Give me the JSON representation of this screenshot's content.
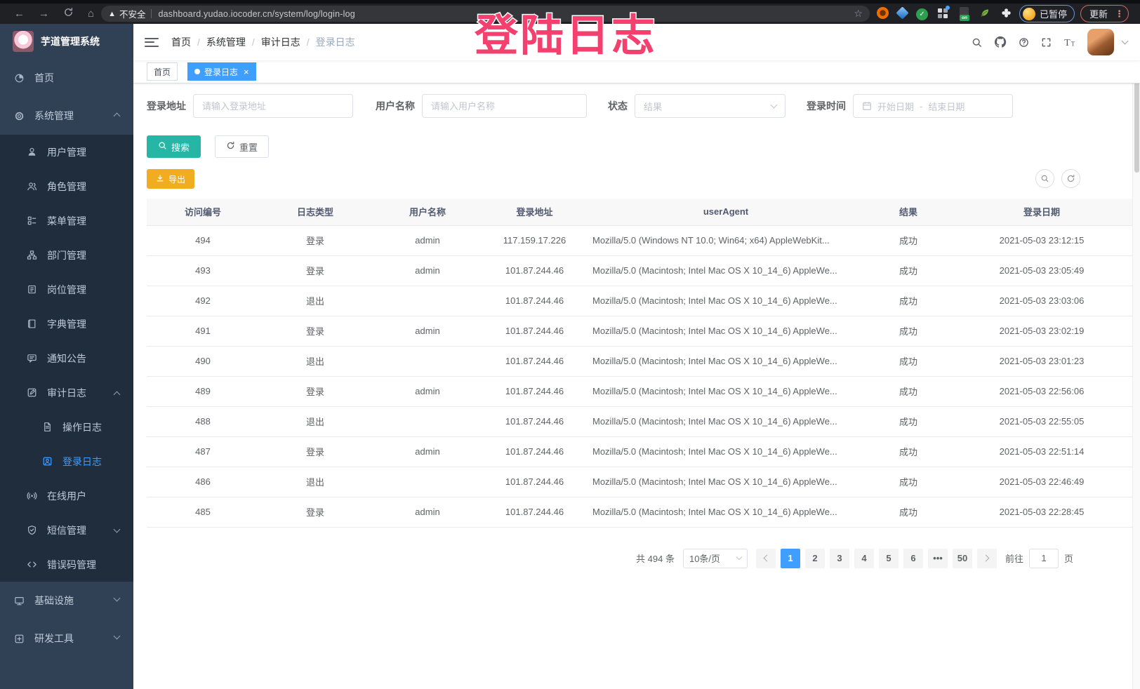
{
  "browser": {
    "nav_icons": [
      "back-icon",
      "forward-icon",
      "reload-icon",
      "home-icon"
    ],
    "security_warning": "不安全",
    "url": "dashboard.yudao.iocoder.cn/system/log/login-log",
    "extension_icons": [
      "adblock-icon",
      "diamond-icon",
      "green-check-icon",
      "tab-grid-icon",
      "switch-on-icon",
      "leaf-icon",
      "puzzle-icon"
    ],
    "profile_paused_label": "已暂停",
    "update_label": "更新"
  },
  "overlay": {
    "text": "登陆日志",
    "color": "#f4406e"
  },
  "sidebar": {
    "logo_title": "芋道管理系统",
    "items": [
      {
        "key": "home",
        "label": "首页",
        "icon": "home-menu-icon",
        "level": 1,
        "chevron": null,
        "active": false
      },
      {
        "key": "system-management",
        "label": "系统管理",
        "icon": "gear-icon",
        "level": 1,
        "chevron": "up",
        "active": false
      },
      {
        "key": "user-management",
        "label": "用户管理",
        "icon": "user-icon",
        "level": 2,
        "chevron": null,
        "active": false
      },
      {
        "key": "role-management",
        "label": "角色管理",
        "icon": "role-icon",
        "level": 2,
        "chevron": null,
        "active": false
      },
      {
        "key": "menu-management",
        "label": "菜单管理",
        "icon": "menu-tree-icon",
        "level": 2,
        "chevron": null,
        "active": false
      },
      {
        "key": "dept-management",
        "label": "部门管理",
        "icon": "dept-icon",
        "level": 2,
        "chevron": null,
        "active": false
      },
      {
        "key": "post-management",
        "label": "岗位管理",
        "icon": "post-icon",
        "level": 2,
        "chevron": null,
        "active": false
      },
      {
        "key": "dict-management",
        "label": "字典管理",
        "icon": "dict-icon",
        "level": 2,
        "chevron": null,
        "active": false
      },
      {
        "key": "notice-announcement",
        "label": "通知公告",
        "icon": "notice-icon",
        "level": 2,
        "chevron": null,
        "active": false
      },
      {
        "key": "audit-log",
        "label": "审计日志",
        "icon": "audit-icon",
        "level": 2,
        "chevron": "up",
        "active": false
      },
      {
        "key": "operation-log",
        "label": "操作日志",
        "icon": "doc-icon",
        "level": 3,
        "chevron": null,
        "active": false
      },
      {
        "key": "login-log",
        "label": "登录日志",
        "icon": "login-log-icon",
        "level": 3,
        "chevron": null,
        "active": true
      },
      {
        "key": "online-users",
        "label": "在线用户",
        "icon": "online-icon",
        "level": 2,
        "chevron": null,
        "active": false
      },
      {
        "key": "sms-management",
        "label": "短信管理",
        "icon": "sms-icon",
        "level": 2,
        "chevron": "down",
        "active": false
      },
      {
        "key": "error-code-management",
        "label": "错误码管理",
        "icon": "code-icon",
        "level": 2,
        "chevron": null,
        "active": false
      },
      {
        "key": "infrastructure",
        "label": "基础设施",
        "icon": "infra-icon",
        "level": 1,
        "chevron": "down",
        "active": false
      },
      {
        "key": "dev-tools",
        "label": "研发工具",
        "icon": "tools-icon",
        "level": 1,
        "chevron": "down",
        "active": false
      }
    ]
  },
  "header": {
    "breadcrumb": [
      "首页",
      "系统管理",
      "审计日志",
      "登录日志"
    ],
    "icons": [
      "search-icon",
      "github-icon",
      "question-icon",
      "fullscreen-icon",
      "font-size-icon"
    ]
  },
  "tags": [
    {
      "label": "首页",
      "active": false,
      "closable": false
    },
    {
      "label": "登录日志",
      "active": true,
      "closable": true
    }
  ],
  "filters": {
    "address_label": "登录地址",
    "address_placeholder": "请输入登录地址",
    "username_label": "用户名称",
    "username_placeholder": "请输入用户名称",
    "status_label": "状态",
    "status_placeholder": "结果",
    "time_label": "登录时间",
    "date_start_placeholder": "开始日期",
    "date_separator": "-",
    "date_end_placeholder": "结束日期"
  },
  "actions": {
    "search_label": "搜索",
    "reset_label": "重置",
    "export_label": "导出"
  },
  "table": {
    "columns": [
      "访问编号",
      "日志类型",
      "用户名称",
      "登录地址",
      "userAgent",
      "结果",
      "登录日期"
    ],
    "rows": [
      [
        "494",
        "登录",
        "admin",
        "117.159.17.226",
        "Mozilla/5.0 (Windows NT 10.0; Win64; x64) AppleWebKit...",
        "成功",
        "2021-05-03 23:12:15"
      ],
      [
        "493",
        "登录",
        "admin",
        "101.87.244.46",
        "Mozilla/5.0 (Macintosh; Intel Mac OS X 10_14_6) AppleWe...",
        "成功",
        "2021-05-03 23:05:49"
      ],
      [
        "492",
        "退出",
        "",
        "101.87.244.46",
        "Mozilla/5.0 (Macintosh; Intel Mac OS X 10_14_6) AppleWe...",
        "成功",
        "2021-05-03 23:03:06"
      ],
      [
        "491",
        "登录",
        "admin",
        "101.87.244.46",
        "Mozilla/5.0 (Macintosh; Intel Mac OS X 10_14_6) AppleWe...",
        "成功",
        "2021-05-03 23:02:19"
      ],
      [
        "490",
        "退出",
        "",
        "101.87.244.46",
        "Mozilla/5.0 (Macintosh; Intel Mac OS X 10_14_6) AppleWe...",
        "成功",
        "2021-05-03 23:01:23"
      ],
      [
        "489",
        "登录",
        "admin",
        "101.87.244.46",
        "Mozilla/5.0 (Macintosh; Intel Mac OS X 10_14_6) AppleWe...",
        "成功",
        "2021-05-03 22:56:06"
      ],
      [
        "488",
        "退出",
        "",
        "101.87.244.46",
        "Mozilla/5.0 (Macintosh; Intel Mac OS X 10_14_6) AppleWe...",
        "成功",
        "2021-05-03 22:55:05"
      ],
      [
        "487",
        "登录",
        "admin",
        "101.87.244.46",
        "Mozilla/5.0 (Macintosh; Intel Mac OS X 10_14_6) AppleWe...",
        "成功",
        "2021-05-03 22:51:14"
      ],
      [
        "486",
        "退出",
        "",
        "101.87.244.46",
        "Mozilla/5.0 (Macintosh; Intel Mac OS X 10_14_6) AppleWe...",
        "成功",
        "2021-05-03 22:46:49"
      ],
      [
        "485",
        "登录",
        "admin",
        "101.87.244.46",
        "Mozilla/5.0 (Macintosh; Intel Mac OS X 10_14_6) AppleWe...",
        "成功",
        "2021-05-03 22:28:45"
      ]
    ]
  },
  "pagination": {
    "total_label": "共 494 条",
    "page_size_label": "10条/页",
    "pages": [
      "1",
      "2",
      "3",
      "4",
      "5",
      "6",
      "•••",
      "50"
    ],
    "active_page": "1",
    "goto_label": "前往",
    "goto_value": "1",
    "goto_unit": "页"
  },
  "colors": {
    "accent_blue": "#409eff",
    "search_teal": "#26b6a6",
    "export_orange": "#f0ad1f",
    "sidebar_bg": "#304156",
    "submenu_bg": "#1f2d3d",
    "overlay_pink": "#f4406e"
  }
}
